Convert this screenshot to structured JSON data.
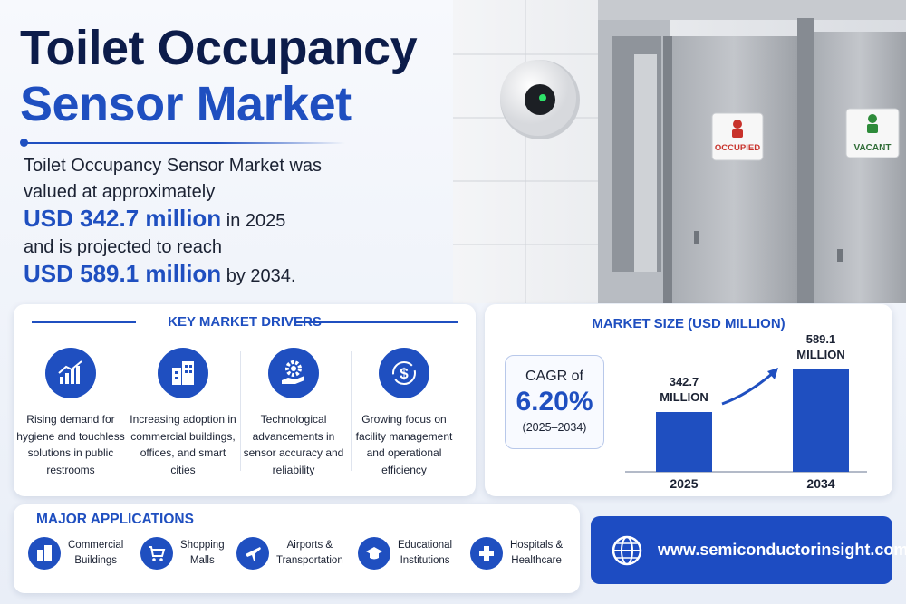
{
  "header": {
    "title_line1": "Toilet Occupancy",
    "title_line2": "Sensor Market"
  },
  "intro": {
    "line1": "Toilet Occupancy Sensor Market was",
    "line2": "valued at approximately",
    "value_2025": "USD 342.7 million",
    "year_2025": "in 2025",
    "line4": "and is projected to reach",
    "value_2034": "USD 589.1 million",
    "year_2034": "by 2034."
  },
  "photo": {
    "sign_occupied": "OCCUPIED",
    "sign_vacant": "VACANT"
  },
  "drivers": {
    "title": "KEY MARKET DRIVERS",
    "items": [
      "Rising demand for hygiene and touchless solutions in public restrooms",
      "Increasing adoption in commercial buildings, offices, and smart cities",
      "Technological advancements in sensor accuracy and reliability",
      "Growing focus on facility management and operational efficiency"
    ]
  },
  "market_size": {
    "type": "bar",
    "title": "MARKET SIZE (USD MILLION)",
    "cagr_label": "CAGR of",
    "cagr_value": "6.20%",
    "cagr_period": "(2025–2034)",
    "categories": [
      "2025",
      "2034"
    ],
    "values": [
      342.7,
      589.1
    ],
    "value_labels": [
      "342.7 MILLION",
      "589.1 MILLION"
    ],
    "color": "#1f4fc0"
  },
  "applications": {
    "title": "MAJOR APPLICATIONS",
    "items": [
      [
        "Commercial",
        "Buildings"
      ],
      [
        "Shopping",
        "Malls"
      ],
      [
        "Airports &",
        "Transportation"
      ],
      [
        "Educational",
        "Institutions"
      ],
      [
        "Hospitals &",
        "Healthcare"
      ]
    ]
  },
  "website": "www.semiconductorinsight.com"
}
